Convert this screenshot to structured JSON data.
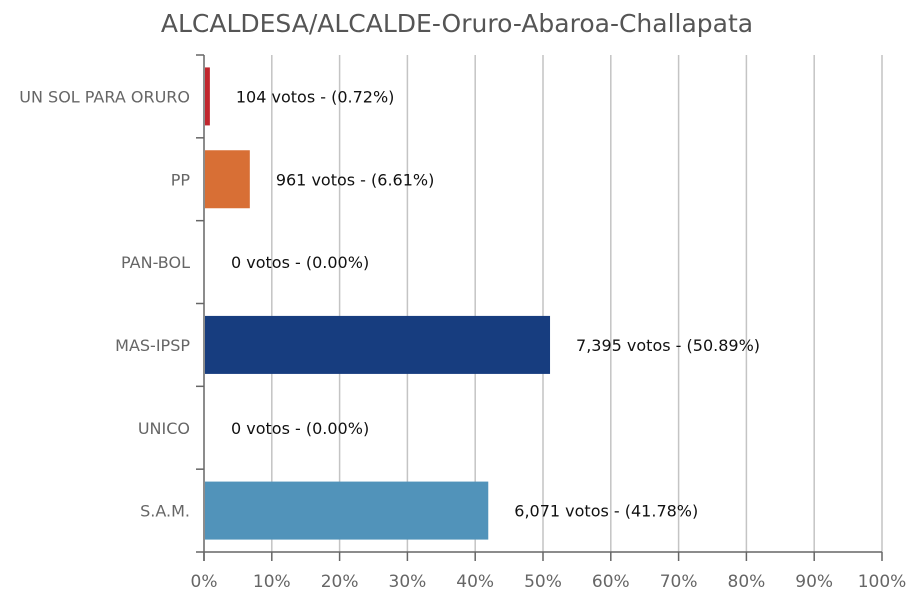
{
  "chart_data": {
    "type": "bar",
    "orientation": "horizontal",
    "title": "ALCALDESA/ALCALDE-Oruro-Abaroa-Challapata",
    "categories": [
      "UN SOL PARA ORURO",
      "PP",
      "PAN-BOL",
      "MAS-IPSP",
      "UNICO",
      "S.A.M."
    ],
    "values": [
      0.72,
      6.61,
      0.0,
      50.89,
      0.0,
      41.78
    ],
    "votes": [
      104,
      961,
      0,
      7395,
      0,
      6071
    ],
    "data_labels": [
      "104 votos - (0.72%)",
      "961 votos - (6.61%)",
      "0 votos - (0.00%)",
      "7,395 votos - (50.89%)",
      "0 votos - (0.00%)",
      "6,071 votos - (41.78%)"
    ],
    "colors": [
      "#c0262d",
      "#d86f35",
      "#888888",
      "#173d7f",
      "#888888",
      "#5193ba"
    ],
    "xlim": [
      0,
      100
    ],
    "xticks": [
      "0%",
      "10%",
      "20%",
      "30%",
      "40%",
      "50%",
      "60%",
      "70%",
      "80%",
      "90%",
      "100%"
    ],
    "grid": true,
    "legend": "none"
  }
}
